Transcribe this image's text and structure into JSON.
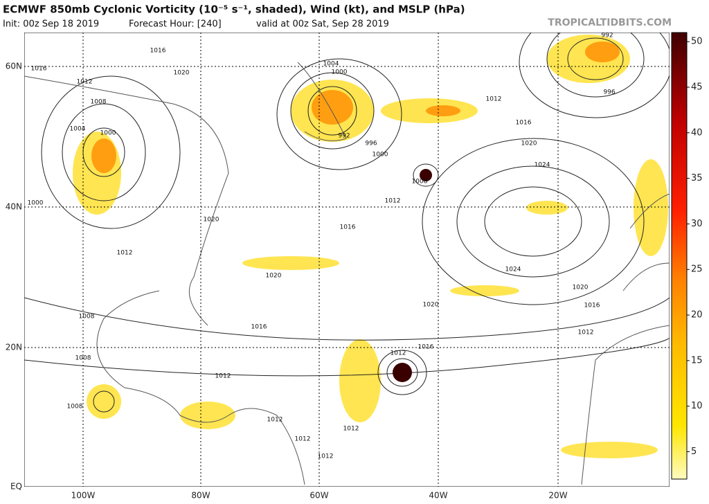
{
  "header": {
    "title": "ECMWF 850mb Cyclonic Vorticity (10⁻⁵ s⁻¹, shaded), Wind (kt), and MSLP (hPa)",
    "init": "Init: 00z Sep 18 2019",
    "forecast": "Forecast Hour: [240]",
    "valid": "valid at 00z Sat, Sep 28 2019",
    "site": "TROPICALTIDBITS.COM"
  },
  "map": {
    "lat_labels": [
      "60N",
      "40N",
      "20N",
      "EQ"
    ],
    "lon_labels": [
      "100W",
      "80W",
      "60W",
      "40W",
      "20W"
    ],
    "isobar_labels": [
      "1016",
      "1016",
      "1020",
      "1012",
      "1008",
      "1004",
      "1000",
      "1004",
      "1000",
      "992",
      "996",
      "1000",
      "1008",
      "1012",
      "1016",
      "1020",
      "1012",
      "1020",
      "1012",
      "1016",
      "1020",
      "1024",
      "1024",
      "1020",
      "1016",
      "1020",
      "1016",
      "1012",
      "1012",
      "1016",
      "1012",
      "1008",
      "1008",
      "1008",
      "1012",
      "1012",
      "1012",
      "1012",
      "992",
      "996",
      "1000"
    ]
  },
  "colorbar": {
    "range": [
      2,
      51
    ],
    "ticks": [
      5,
      10,
      15,
      20,
      25,
      30,
      35,
      40,
      45,
      50
    ]
  }
}
